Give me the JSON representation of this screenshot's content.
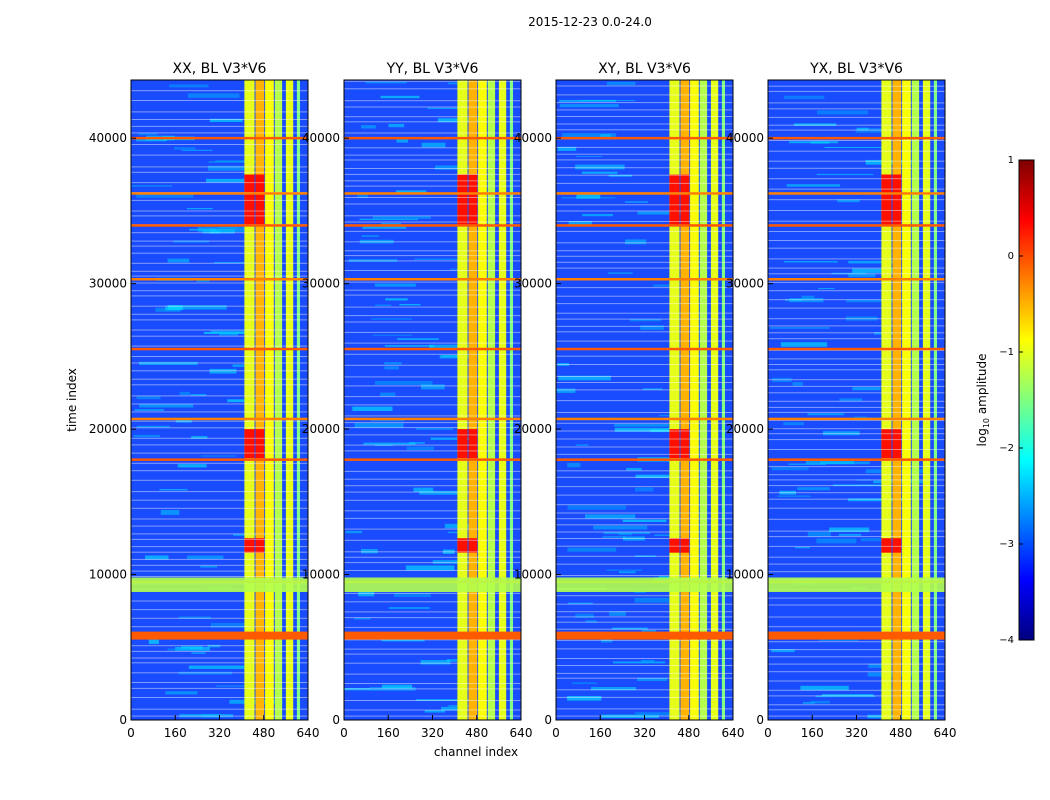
{
  "chart_data": {
    "type": "heatmap",
    "suptitle": "2015-12-23 0.0-24.0",
    "xlabel": "channel index",
    "ylabel": "time index",
    "xlim": [
      0,
      640
    ],
    "ylim": [
      0,
      44000
    ],
    "xticks": [
      0,
      160,
      320,
      480,
      640
    ],
    "yticks": [
      0,
      10000,
      20000,
      30000,
      40000
    ],
    "panels": [
      {
        "title": "XX, BL V3*V6"
      },
      {
        "title": "YY, BL V3*V6"
      },
      {
        "title": "XY, BL V3*V6"
      },
      {
        "title": "YX, BL V3*V6"
      }
    ],
    "colorbar": {
      "label_prefix": "log",
      "label_sub": "10",
      "label_suffix": " amplitude",
      "range": [
        -4,
        1
      ],
      "ticks": [
        1,
        0,
        -1,
        -2,
        -3,
        -4
      ],
      "tick_labels": [
        "1",
        "0",
        "−1",
        "−2",
        "−3",
        "−4"
      ],
      "colormap": "jet"
    },
    "rfi_bands_channels": [
      [
        410,
        450
      ],
      [
        450,
        485
      ],
      [
        485,
        520
      ],
      [
        520,
        550
      ],
      [
        560,
        590
      ],
      [
        600,
        615
      ]
    ],
    "flagged_rows_time": [
      5800,
      9500,
      17900,
      20700,
      25500,
      30300,
      34000,
      36200,
      40000
    ]
  }
}
